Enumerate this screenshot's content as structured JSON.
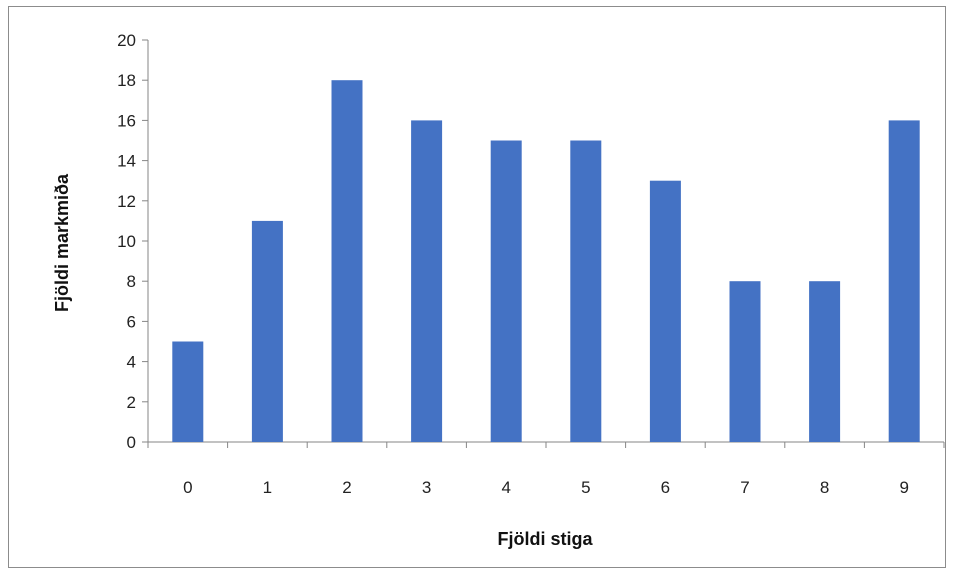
{
  "chart_data": {
    "type": "bar",
    "categories": [
      "0",
      "1",
      "2",
      "3",
      "4",
      "5",
      "6",
      "7",
      "8",
      "9"
    ],
    "values": [
      5,
      11,
      18,
      16,
      15,
      15,
      13,
      8,
      8,
      16
    ],
    "title": "",
    "xlabel": "Fjöldi stiga",
    "ylabel": "Fjöldi markmiða",
    "ylim": [
      0,
      20
    ],
    "yticks": [
      "0",
      "2",
      "4",
      "6",
      "8",
      "10",
      "12",
      "14",
      "16",
      "18",
      "20"
    ],
    "bar_color": "#4472C4",
    "grid": false,
    "legend": "none"
  }
}
